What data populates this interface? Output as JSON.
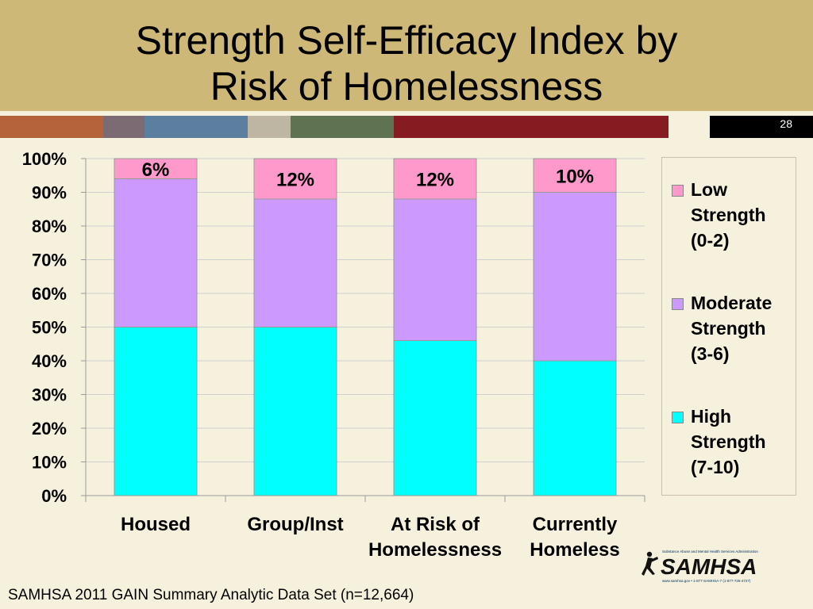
{
  "slide": {
    "title_lines": [
      "Strength Self-Efficacy Index by",
      "Risk of Homelessness"
    ],
    "slide_number": "28",
    "source": "SAMHSA 2011 GAIN Summary Analytic Data Set (n=12,664)",
    "logo": {
      "name": "SAMHSA",
      "tagline": "Substance Abuse and Mental Health Services Administration",
      "contact": "www.samhsa.gov • 1-877-SAMHSA-7 (1-877-726-4727)"
    },
    "colors": {
      "header": "#cdb878",
      "background": "#f6f1dc",
      "band": [
        "#b5633a",
        "#7c6b73",
        "#5c7fa0",
        "#bfb5a3",
        "#5f7353",
        "#861b22",
        "#f6f1dc",
        "#000000"
      ]
    }
  },
  "chart_data": {
    "type": "bar",
    "stacked": true,
    "categories": [
      [
        "Housed"
      ],
      [
        "Group/Inst"
      ],
      [
        "At Risk of",
        "Homelessness"
      ],
      [
        "Currently",
        "Homeless"
      ]
    ],
    "series": [
      {
        "name": [
          "High",
          "Strength",
          "(7-10)"
        ],
        "color": "#00ffff",
        "values": [
          50,
          50,
          46,
          40
        ]
      },
      {
        "name": [
          "Moderate",
          "Strength",
          "(3-6)"
        ],
        "color": "#cc99ff",
        "values": [
          44,
          38,
          42,
          50
        ]
      },
      {
        "name": [
          "Low",
          "Strength",
          "(0-2)"
        ],
        "color": "#ff99cc",
        "values": [
          6,
          12,
          12,
          10
        ]
      }
    ],
    "data_labels": [
      "6%",
      "12%",
      "12%",
      "10%"
    ],
    "yticks": [
      "0%",
      "10%",
      "20%",
      "30%",
      "40%",
      "50%",
      "60%",
      "70%",
      "80%",
      "90%",
      "100%"
    ],
    "ylim": [
      0,
      100
    ],
    "grid": true,
    "legend_position": "right"
  }
}
